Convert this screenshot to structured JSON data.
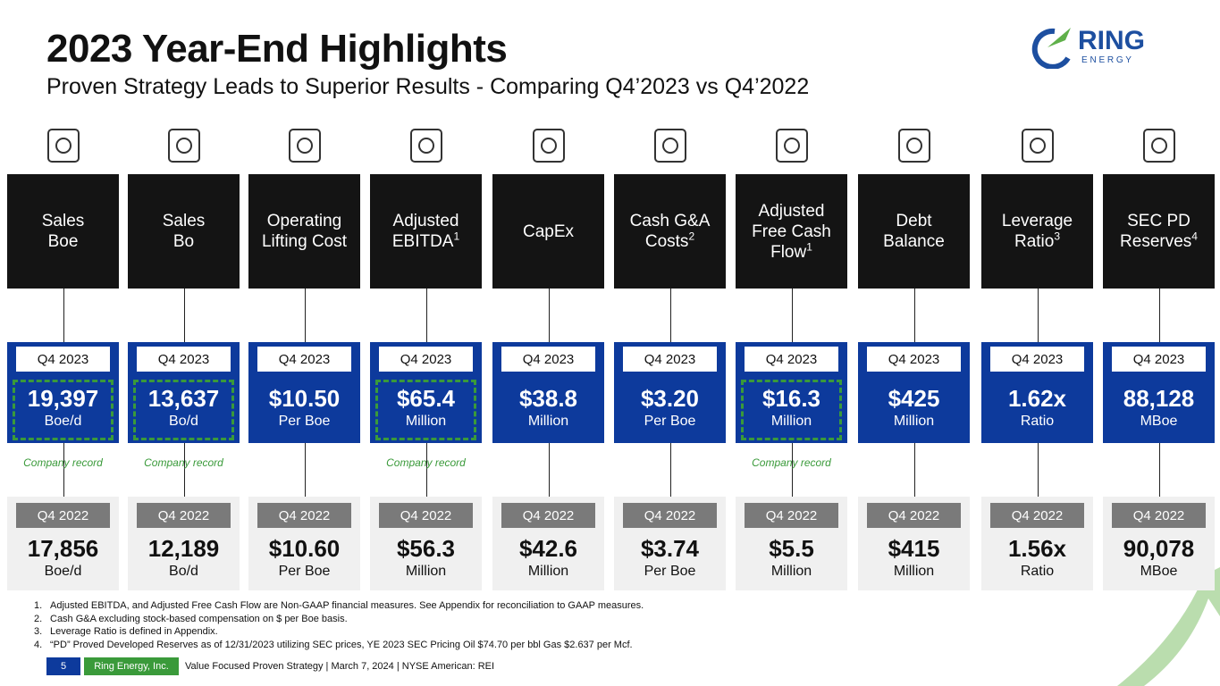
{
  "header": {
    "title": "2023 Year-End Highlights",
    "subtitle": "Proven Strategy Leads to Superior Results - Comparing Q4’2023 vs Q4’2022"
  },
  "logo": {
    "name": "RING",
    "tagline": "E N E R G Y"
  },
  "metrics": [
    {
      "label": [
        "Sales",
        "Boe"
      ],
      "current": {
        "period": "Q4 2023",
        "value": "19,397",
        "unit": "Boe/d"
      },
      "record": "Company record",
      "prior": {
        "period": "Q4 2022",
        "value": "17,856",
        "unit": "Boe/d"
      }
    },
    {
      "label": [
        "Sales",
        "Bo"
      ],
      "current": {
        "period": "Q4 2023",
        "value": "13,637",
        "unit": "Bo/d"
      },
      "record": "Company record",
      "prior": {
        "period": "Q4 2022",
        "value": "12,189",
        "unit": "Bo/d"
      }
    },
    {
      "label": [
        "Operating",
        "Lifting Cost"
      ],
      "current": {
        "period": "Q4 2023",
        "value": "$10.50",
        "unit": "Per Boe"
      },
      "prior": {
        "period": "Q4 2022",
        "value": "$10.60",
        "unit": "Per Boe"
      }
    },
    {
      "label": [
        "Adjusted",
        "EBITDA"
      ],
      "sup": "1",
      "current": {
        "period": "Q4 2023",
        "value": "$65.4",
        "unit": "Million"
      },
      "record": "Company record",
      "prior": {
        "period": "Q4 2022",
        "value": "$56.3",
        "unit": "Million"
      }
    },
    {
      "label": [
        "CapEx"
      ],
      "current": {
        "period": "Q4 2023",
        "value": "$38.8",
        "unit": "Million"
      },
      "prior": {
        "period": "Q4 2022",
        "value": "$42.6",
        "unit": "Million"
      }
    },
    {
      "label": [
        "Cash G&A",
        "Costs"
      ],
      "sup": "2",
      "current": {
        "period": "Q4 2023",
        "value": "$3.20",
        "unit": "Per Boe"
      },
      "prior": {
        "period": "Q4 2022",
        "value": "$3.74",
        "unit": "Per Boe"
      }
    },
    {
      "label": [
        "Adjusted",
        "Free Cash",
        "Flow"
      ],
      "sup": "1",
      "current": {
        "period": "Q4 2023",
        "value": "$16.3",
        "unit": "Million"
      },
      "record": "Company record",
      "prior": {
        "period": "Q4 2022",
        "value": "$5.5",
        "unit": "Million"
      }
    },
    {
      "label": [
        "Debt",
        "Balance"
      ],
      "current": {
        "period": "Q4 2023",
        "value": "$425",
        "unit": "Million"
      },
      "prior": {
        "period": "Q4 2022",
        "value": "$415",
        "unit": "Million"
      }
    },
    {
      "label": [
        "Leverage",
        "Ratio"
      ],
      "sup": "3",
      "current": {
        "period": "Q4 2023",
        "value": "1.62x",
        "unit": "Ratio"
      },
      "prior": {
        "period": "Q4 2022",
        "value": "1.56x",
        "unit": "Ratio"
      }
    },
    {
      "label": [
        "SEC PD",
        "Reserves"
      ],
      "sup": "4",
      "current": {
        "period": "Q4 2023",
        "value": "88,128",
        "unit": "MBoe"
      },
      "prior": {
        "period": "Q4 2022",
        "value": "90,078",
        "unit": "MBoe"
      }
    }
  ],
  "footnotes": [
    {
      "marker": "1.",
      "text": "Adjusted EBITDA, and Adjusted Free Cash Flow are Non-GAAP financial measures. See Appendix for reconciliation to GAAP measures."
    },
    {
      "marker": "2.",
      "text": "Cash G&A excluding stock-based compensation on $ per Boe basis."
    },
    {
      "marker": "3.",
      "text": "Leverage Ratio is defined in Appendix."
    },
    {
      "marker": "4.",
      "text": "“PD” Proved Developed Reserves as of 12/31/2023 utilizing SEC prices, YE 2023 SEC Pricing Oil $74.70 per bbl Gas $2.637 per Mcf."
    }
  ],
  "footer": {
    "page": "5",
    "company": "Ring Energy, Inc.",
    "text": "Value Focused Proven Strategy | March 7, 2024 | NYSE American: REI"
  }
}
